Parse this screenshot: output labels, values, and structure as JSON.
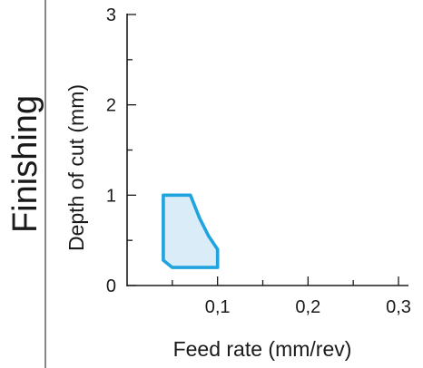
{
  "panel_label": "Finishing",
  "chart_data": {
    "type": "area",
    "title": "",
    "xlabel": "Feed rate (mm/rev)",
    "ylabel": "Depth of cut (mm)",
    "xlim": [
      0,
      0.3
    ],
    "ylim": [
      0,
      3
    ],
    "x_ticks": [
      0.1,
      0.2,
      0.3
    ],
    "x_tick_labels": [
      "0,1",
      "0,2",
      "0,3"
    ],
    "y_ticks": [
      0,
      1,
      2,
      3
    ],
    "y_tick_labels": [
      "0",
      "1",
      "2",
      "3"
    ],
    "grid": false,
    "series": [
      {
        "values": [
          {
            "x": 0.04,
            "y": 0.28
          },
          {
            "x": 0.04,
            "y": 1.0
          },
          {
            "x": 0.07,
            "y": 1.0
          },
          {
            "x": 0.08,
            "y": 0.75
          },
          {
            "x": 0.09,
            "y": 0.55
          },
          {
            "x": 0.1,
            "y": 0.4
          },
          {
            "x": 0.1,
            "y": 0.2
          },
          {
            "x": 0.05,
            "y": 0.2
          }
        ],
        "stroke_color": "#1fa4dd",
        "fill_color": "#d9ecf8"
      }
    ]
  }
}
